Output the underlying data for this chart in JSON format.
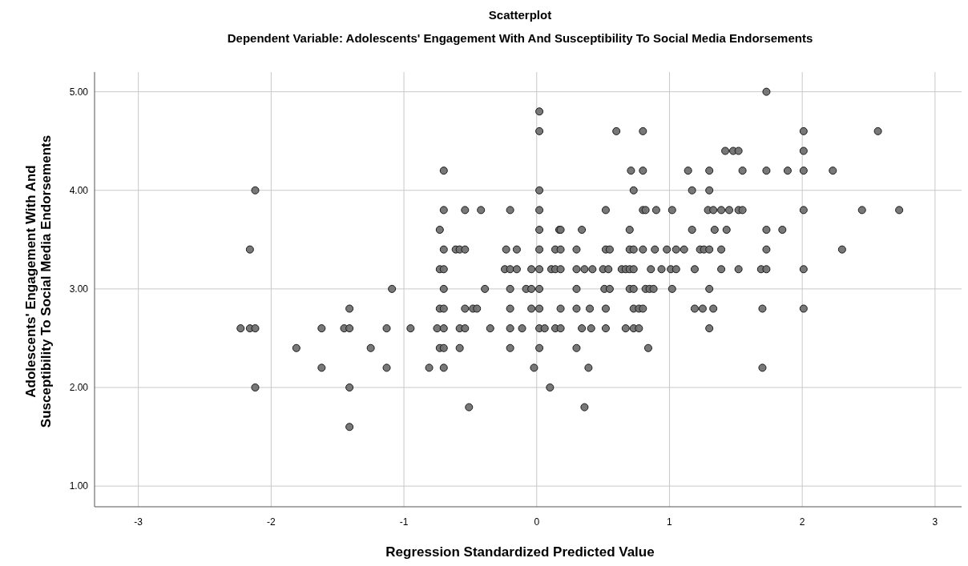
{
  "chart_data": {
    "type": "scatter",
    "title": "Scatterplot",
    "subtitle": "Dependent Variable: Adolescents' Engagement With And Susceptibility To Social Media Endorsements",
    "xlabel": "Regression Standardized Predicted Value",
    "ylabel": "Adolescents' Engagement With And\nSusceptibility To Social Media Endorsements",
    "xlim": [
      -3.33,
      3.2
    ],
    "ylim": [
      0.79,
      5.2
    ],
    "xticks": [
      -3,
      -2,
      -1,
      0,
      1,
      2,
      3
    ],
    "yticks": [
      {
        "value": 1,
        "label": "1.00"
      },
      {
        "value": 2,
        "label": "2.00"
      },
      {
        "value": 3,
        "label": "3.00"
      },
      {
        "value": 4,
        "label": "4.00"
      },
      {
        "value": 5,
        "label": "5.00"
      }
    ],
    "grid": true,
    "marker": "circle",
    "series": [
      {
        "color": "#717171",
        "x": [
          1.73,
          0.02,
          0.02,
          0.6,
          0.8,
          2.01,
          2.57,
          1.42,
          1.48,
          1.52,
          2.01,
          -0.7,
          0.71,
          0.8,
          1.14,
          1.3,
          1.55,
          1.73,
          1.89,
          2.01,
          2.23,
          -2.12,
          0.02,
          0.73,
          1.17,
          1.3,
          -0.7,
          -0.54,
          -0.42,
          -0.2,
          0.02,
          0.52,
          0.8,
          0.82,
          0.9,
          1.02,
          1.29,
          1.33,
          1.39,
          1.45,
          1.52,
          1.55,
          2.01,
          2.45,
          2.73,
          -0.73,
          0.02,
          0.17,
          0.18,
          0.34,
          0.7,
          1.17,
          1.34,
          1.43,
          1.73,
          1.85,
          -2.16,
          -0.7,
          -0.61,
          -0.58,
          -0.54,
          -0.23,
          -0.15,
          0.02,
          0.14,
          0.18,
          0.3,
          0.52,
          0.55,
          0.7,
          0.73,
          0.8,
          0.89,
          0.98,
          1.05,
          1.11,
          1.23,
          1.26,
          1.3,
          1.39,
          1.73,
          2.3,
          -0.73,
          -0.7,
          -0.24,
          -0.2,
          -0.15,
          -0.04,
          0.02,
          0.11,
          0.14,
          0.18,
          0.3,
          0.36,
          0.42,
          0.5,
          0.54,
          0.64,
          0.67,
          0.7,
          0.73,
          0.86,
          0.94,
          1.01,
          1.05,
          1.19,
          1.39,
          1.52,
          1.69,
          1.73,
          2.01,
          -1.09,
          -0.7,
          -0.39,
          -0.2,
          -0.08,
          -0.04,
          0.02,
          0.3,
          0.51,
          0.55,
          0.7,
          0.73,
          0.82,
          0.85,
          0.88,
          1.02,
          1.3,
          -1.41,
          -0.73,
          -0.7,
          -0.54,
          -0.48,
          -0.45,
          -0.2,
          -0.04,
          0.02,
          0.18,
          0.3,
          0.4,
          0.52,
          0.73,
          0.77,
          0.8,
          1.19,
          1.25,
          1.33,
          1.7,
          2.01,
          -2.23,
          -2.16,
          -2.12,
          -1.62,
          -1.45,
          -1.41,
          -1.13,
          -0.95,
          -0.75,
          -0.7,
          -0.58,
          -0.54,
          -0.35,
          -0.2,
          -0.11,
          0.02,
          0.06,
          0.14,
          0.18,
          0.34,
          0.41,
          0.52,
          0.67,
          0.73,
          0.77,
          1.3,
          -1.81,
          -1.25,
          -0.73,
          -0.7,
          -0.58,
          -0.2,
          0.02,
          0.3,
          0.84,
          -1.62,
          -1.13,
          -0.81,
          -0.7,
          -0.02,
          0.39,
          1.7,
          -2.12,
          -1.41,
          0.1,
          -0.51,
          0.36,
          -1.41
        ],
        "values": [
          5.0,
          4.8,
          4.6,
          4.6,
          4.6,
          4.6,
          4.6,
          4.4,
          4.4,
          4.4,
          4.4,
          4.2,
          4.2,
          4.2,
          4.2,
          4.2,
          4.2,
          4.2,
          4.2,
          4.2,
          4.2,
          4.0,
          4.0,
          4.0,
          4.0,
          4.0,
          3.8,
          3.8,
          3.8,
          3.8,
          3.8,
          3.8,
          3.8,
          3.8,
          3.8,
          3.8,
          3.8,
          3.8,
          3.8,
          3.8,
          3.8,
          3.8,
          3.8,
          3.8,
          3.8,
          3.6,
          3.6,
          3.6,
          3.6,
          3.6,
          3.6,
          3.6,
          3.6,
          3.6,
          3.6,
          3.6,
          3.4,
          3.4,
          3.4,
          3.4,
          3.4,
          3.4,
          3.4,
          3.4,
          3.4,
          3.4,
          3.4,
          3.4,
          3.4,
          3.4,
          3.4,
          3.4,
          3.4,
          3.4,
          3.4,
          3.4,
          3.4,
          3.4,
          3.4,
          3.4,
          3.4,
          3.4,
          3.2,
          3.2,
          3.2,
          3.2,
          3.2,
          3.2,
          3.2,
          3.2,
          3.2,
          3.2,
          3.2,
          3.2,
          3.2,
          3.2,
          3.2,
          3.2,
          3.2,
          3.2,
          3.2,
          3.2,
          3.2,
          3.2,
          3.2,
          3.2,
          3.2,
          3.2,
          3.2,
          3.2,
          3.2,
          3.0,
          3.0,
          3.0,
          3.0,
          3.0,
          3.0,
          3.0,
          3.0,
          3.0,
          3.0,
          3.0,
          3.0,
          3.0,
          3.0,
          3.0,
          3.0,
          3.0,
          2.8,
          2.8,
          2.8,
          2.8,
          2.8,
          2.8,
          2.8,
          2.8,
          2.8,
          2.8,
          2.8,
          2.8,
          2.8,
          2.8,
          2.8,
          2.8,
          2.8,
          2.8,
          2.8,
          2.8,
          2.8,
          2.6,
          2.6,
          2.6,
          2.6,
          2.6,
          2.6,
          2.6,
          2.6,
          2.6,
          2.6,
          2.6,
          2.6,
          2.6,
          2.6,
          2.6,
          2.6,
          2.6,
          2.6,
          2.6,
          2.6,
          2.6,
          2.6,
          2.6,
          2.6,
          2.6,
          2.6,
          2.4,
          2.4,
          2.4,
          2.4,
          2.4,
          2.4,
          2.4,
          2.4,
          2.4,
          2.2,
          2.2,
          2.2,
          2.2,
          2.2,
          2.2,
          2.2,
          2.0,
          2.0,
          2.0,
          1.8,
          1.8,
          1.6
        ]
      }
    ]
  }
}
